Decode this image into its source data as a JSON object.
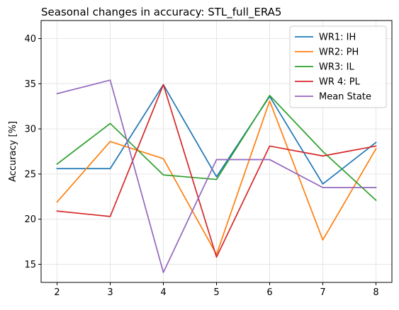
{
  "chart_data": {
    "type": "line",
    "title": "Seasonal changes in accuracy: STL_full_ERA5",
    "xlabel": "",
    "ylabel": "Accuracy [%]",
    "x": [
      2,
      3,
      4,
      5,
      6,
      7,
      8
    ],
    "xlim": [
      1.7,
      8.3
    ],
    "ylim": [
      13,
      42
    ],
    "xticks": [
      2,
      3,
      4,
      5,
      6,
      7,
      8
    ],
    "yticks": [
      15,
      20,
      25,
      30,
      35,
      40
    ],
    "grid": true,
    "legend_position": "top-right",
    "series": [
      {
        "name": "WR1: IH",
        "color": "#1f77b4",
        "values": [
          25.6,
          25.6,
          34.9,
          24.7,
          33.6,
          23.9,
          28.5
        ]
      },
      {
        "name": "WR2: PH",
        "color": "#ff7f0e",
        "values": [
          21.9,
          28.6,
          26.7,
          16.1,
          33.1,
          17.7,
          27.8
        ]
      },
      {
        "name": "WR3: IL",
        "color": "#2ca02c",
        "values": [
          26.1,
          30.6,
          24.9,
          24.4,
          33.7,
          27.5,
          22.1
        ]
      },
      {
        "name": "WR 4: PL",
        "color": "#d62728",
        "values": [
          20.9,
          20.3,
          34.9,
          15.8,
          28.1,
          27.0,
          28.1
        ]
      },
      {
        "name": "Mean State",
        "color": "#9467bd",
        "values": [
          33.9,
          35.4,
          14.1,
          26.6,
          26.6,
          23.5,
          23.5
        ]
      }
    ]
  }
}
